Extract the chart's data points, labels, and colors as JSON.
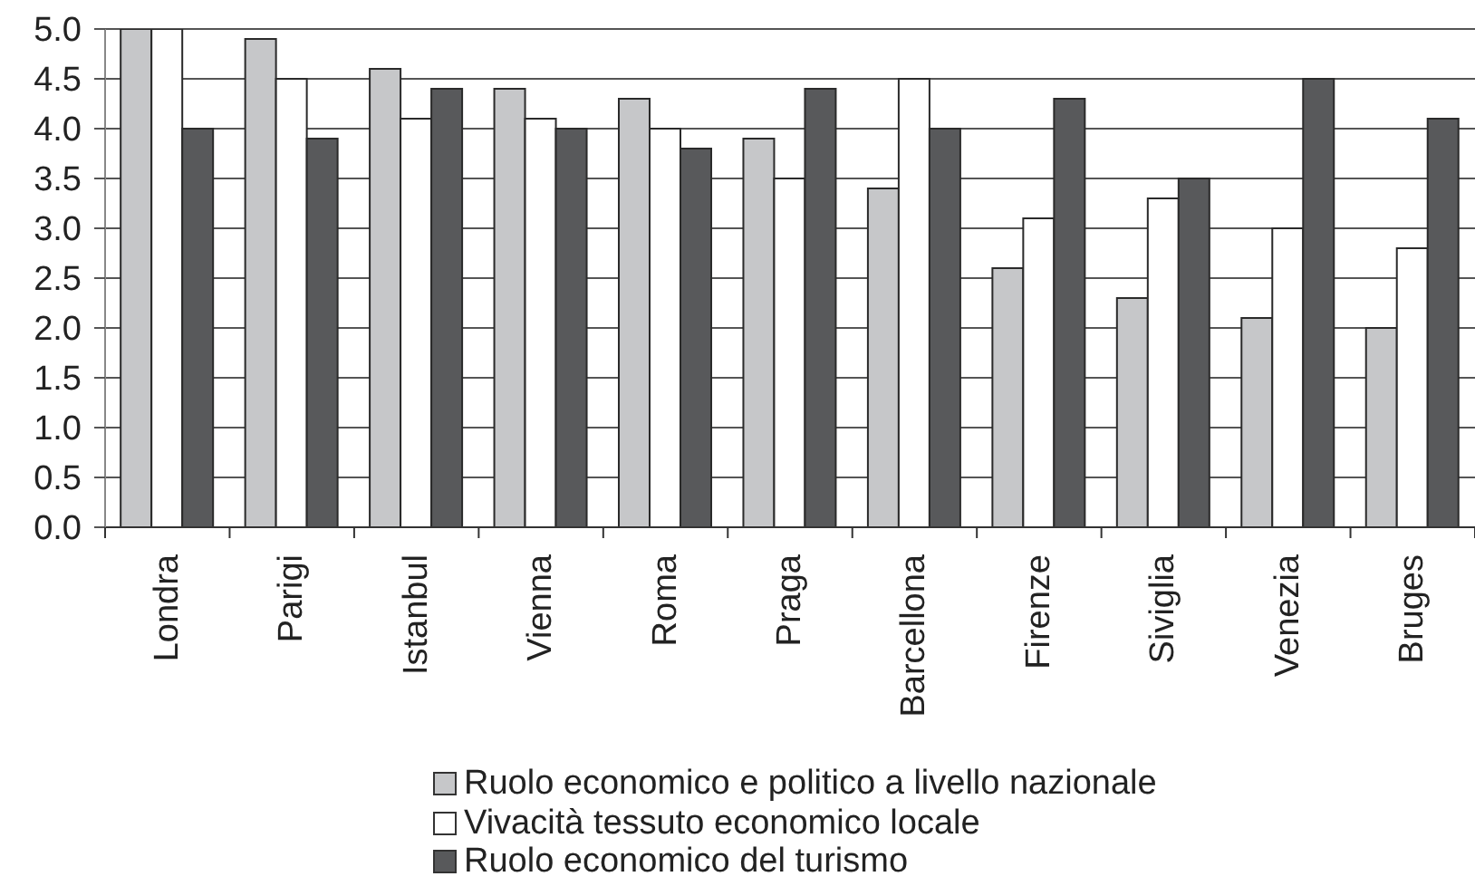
{
  "chart_data": {
    "type": "bar",
    "categories": [
      "Londra",
      "Parigi",
      "Istanbul",
      "Vienna",
      "Roma",
      "Praga",
      "Barcellona",
      "Firenze",
      "Siviglia",
      "Venezia",
      "Bruges"
    ],
    "series": [
      {
        "name": "Ruolo economico e politico a livello nazionale",
        "color": "#c6c7c9",
        "values": [
          5.0,
          4.9,
          4.6,
          4.4,
          4.3,
          3.9,
          3.4,
          2.6,
          2.3,
          2.1,
          2.0
        ]
      },
      {
        "name": "Vivacità tessuto economico locale",
        "color": "#ffffff",
        "values": [
          5.0,
          4.5,
          4.1,
          4.1,
          4.0,
          3.5,
          4.5,
          3.1,
          3.3,
          3.0,
          2.8
        ]
      },
      {
        "name": "Ruolo economico del turismo",
        "color": "#58595b",
        "values": [
          4.0,
          3.9,
          4.4,
          4.0,
          3.8,
          4.4,
          4.0,
          4.3,
          3.5,
          4.5,
          4.1
        ]
      }
    ],
    "ylim": [
      0,
      5
    ],
    "yticks": [
      {
        "value": 0,
        "label": "0.0"
      },
      {
        "value": 0.5,
        "label": "0.5"
      },
      {
        "value": 1,
        "label": "1.0"
      },
      {
        "value": 1.5,
        "label": "1.5"
      },
      {
        "value": 2,
        "label": "2.0"
      },
      {
        "value": 2.5,
        "label": "2.5"
      },
      {
        "value": 3,
        "label": "3.0"
      },
      {
        "value": 3.5,
        "label": "3.5"
      },
      {
        "value": 4,
        "label": "4.0"
      },
      {
        "value": 4.5,
        "label": "4.5"
      },
      {
        "value": 5,
        "label": "5.0"
      }
    ],
    "grid": "y",
    "legend": "bottom"
  }
}
